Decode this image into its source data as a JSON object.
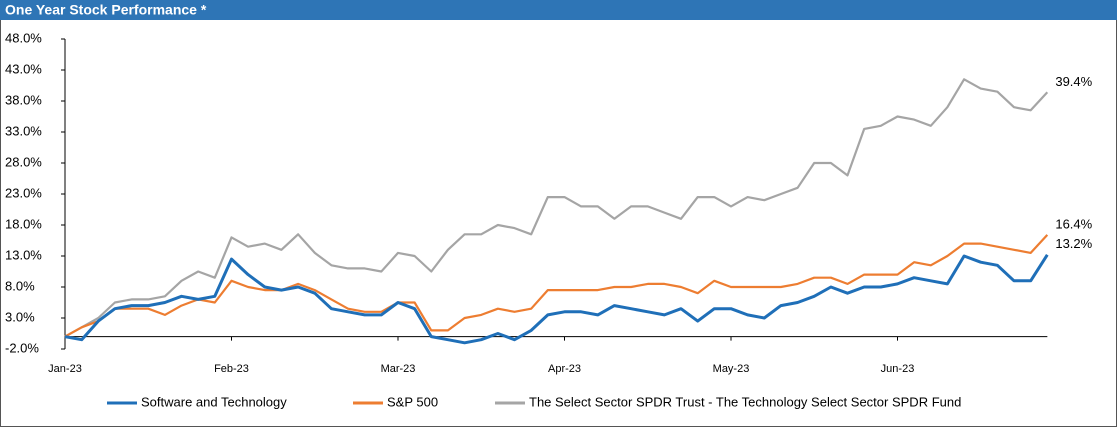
{
  "chart_data": {
    "type": "line",
    "title": "One Year Stock Performance *",
    "categories": [
      "Jan-23",
      null,
      null,
      null,
      null,
      null,
      null,
      null,
      null,
      null,
      "Feb-23",
      null,
      null,
      null,
      null,
      null,
      null,
      null,
      null,
      null,
      "Mar-23",
      null,
      null,
      null,
      null,
      null,
      null,
      null,
      null,
      null,
      "Apr-23",
      null,
      null,
      null,
      null,
      null,
      null,
      null,
      null,
      null,
      "May-23",
      null,
      null,
      null,
      null,
      null,
      null,
      null,
      null,
      null,
      "Jun-23",
      null,
      null,
      null,
      null,
      null,
      null,
      null,
      null,
      null
    ],
    "series": [
      {
        "name": "Software and Technology",
        "color": "#1f6fb8",
        "end_label": "13.2%",
        "values": [
          0,
          -0.5,
          2.5,
          4.5,
          5,
          5,
          5.5,
          6.5,
          6,
          6.5,
          12.5,
          10,
          8,
          7.5,
          8,
          7,
          4.5,
          4,
          3.5,
          3.5,
          5.5,
          4.5,
          0,
          -0.5,
          -1,
          -0.5,
          0.5,
          -0.5,
          1,
          3.5,
          4,
          4,
          3.5,
          5,
          4.5,
          4,
          3.5,
          4.5,
          2.5,
          4.5,
          4.5,
          3.5,
          3,
          5,
          5.5,
          6.5,
          8,
          7,
          8,
          8,
          8.5,
          9.5,
          9,
          8.5,
          13,
          12,
          11.5,
          9,
          9,
          13.2
        ]
      },
      {
        "name": "S&P 500",
        "color": "#ed7d31",
        "end_label": "16.4%",
        "values": [
          0,
          1.5,
          2.5,
          4.5,
          4.5,
          4.5,
          3.5,
          5,
          6,
          5.5,
          9,
          8,
          7.5,
          7.5,
          8.5,
          7.5,
          6,
          4.5,
          4,
          4,
          5.5,
          5.5,
          1,
          1,
          3,
          3.5,
          4.5,
          4,
          4.5,
          7.5,
          7.5,
          7.5,
          7.5,
          8,
          8,
          8.5,
          8.5,
          8,
          7,
          9,
          8,
          8,
          8,
          8,
          8.5,
          9.5,
          9.5,
          8.5,
          10,
          10,
          10,
          12,
          11.5,
          13,
          15,
          15,
          14.5,
          14,
          13.5,
          16.4
        ]
      },
      {
        "name": "The Select Sector SPDR Trust - The Technology Select Sector SPDR Fund",
        "color": "#a5a5a5",
        "end_label": "39.4%",
        "values": [
          0,
          1.5,
          3,
          5.5,
          6,
          6,
          6.5,
          9,
          10.5,
          9.5,
          16,
          14.5,
          15,
          14,
          16.5,
          13.5,
          11.5,
          11,
          11,
          10.5,
          13.5,
          13,
          10.5,
          14,
          16.5,
          16.5,
          18,
          17.5,
          16.5,
          22.5,
          22.5,
          21,
          21,
          19,
          21,
          21,
          20,
          19,
          22.5,
          22.5,
          21,
          22.5,
          22,
          23,
          24,
          28,
          28,
          26,
          33.5,
          34,
          35.5,
          35,
          34,
          37,
          41.5,
          40,
          39.5,
          37,
          36.5,
          39.4
        ]
      }
    ],
    "ylim": [
      -2,
      48
    ],
    "yticks": [
      {
        "value": -2,
        "label": "-2.0%"
      },
      {
        "value": 3,
        "label": "3.0%"
      },
      {
        "value": 8,
        "label": "8.0%"
      },
      {
        "value": 13,
        "label": "13.0%"
      },
      {
        "value": 18,
        "label": "18.0%"
      },
      {
        "value": 23,
        "label": "23.0%"
      },
      {
        "value": 28,
        "label": "28.0%"
      },
      {
        "value": 33,
        "label": "33.0%"
      },
      {
        "value": 38,
        "label": "38.0%"
      },
      {
        "value": 43,
        "label": "43.0%"
      },
      {
        "value": 48,
        "label": "48.0%"
      }
    ],
    "grid": false,
    "legend": "bottom"
  }
}
